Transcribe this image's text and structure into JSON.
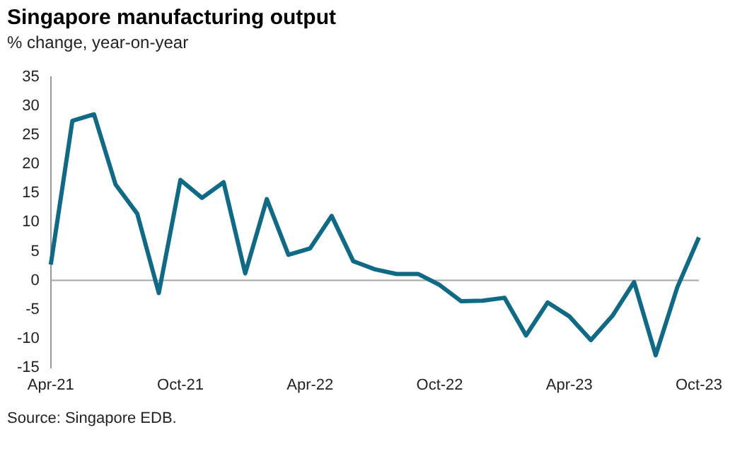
{
  "chart_data": {
    "type": "line",
    "title": "Singapore manufacturing output",
    "subtitle": "% change, year-on-year",
    "annotations": [
      "Source: Singapore EDB."
    ],
    "categories": [
      "Apr-21",
      null,
      null,
      null,
      null,
      null,
      "Oct-21",
      null,
      null,
      null,
      null,
      null,
      "Apr-22",
      null,
      null,
      null,
      null,
      null,
      "Oct-22",
      null,
      null,
      null,
      null,
      null,
      "Apr-23",
      null,
      null,
      null,
      null,
      null,
      "Oct-23"
    ],
    "series": [
      {
        "color": "#0e6a85",
        "values": [
          2.7,
          27.5,
          28.6,
          16.5,
          11.5,
          -2.2,
          17.3,
          14.2,
          16.9,
          1.2,
          14.0,
          4.4,
          5.5,
          11.1,
          3.3,
          1.9,
          1.1,
          1.1,
          -0.8,
          -3.6,
          -3.5,
          -3.0,
          -9.5,
          -3.8,
          -6.2,
          -10.3,
          -6.1,
          -0.3,
          -12.9,
          -1.2,
          7.4
        ]
      }
    ],
    "ylim": [
      -15,
      35
    ],
    "yticks": [
      -15,
      -10,
      -5,
      0,
      5,
      10,
      15,
      20,
      25,
      30,
      35
    ],
    "ref_lines": [
      {
        "axis": "y",
        "value": 0,
        "color": "#a6a6a6"
      }
    ],
    "grid": false,
    "legend": false,
    "marker": "none",
    "line_style": "solid"
  }
}
